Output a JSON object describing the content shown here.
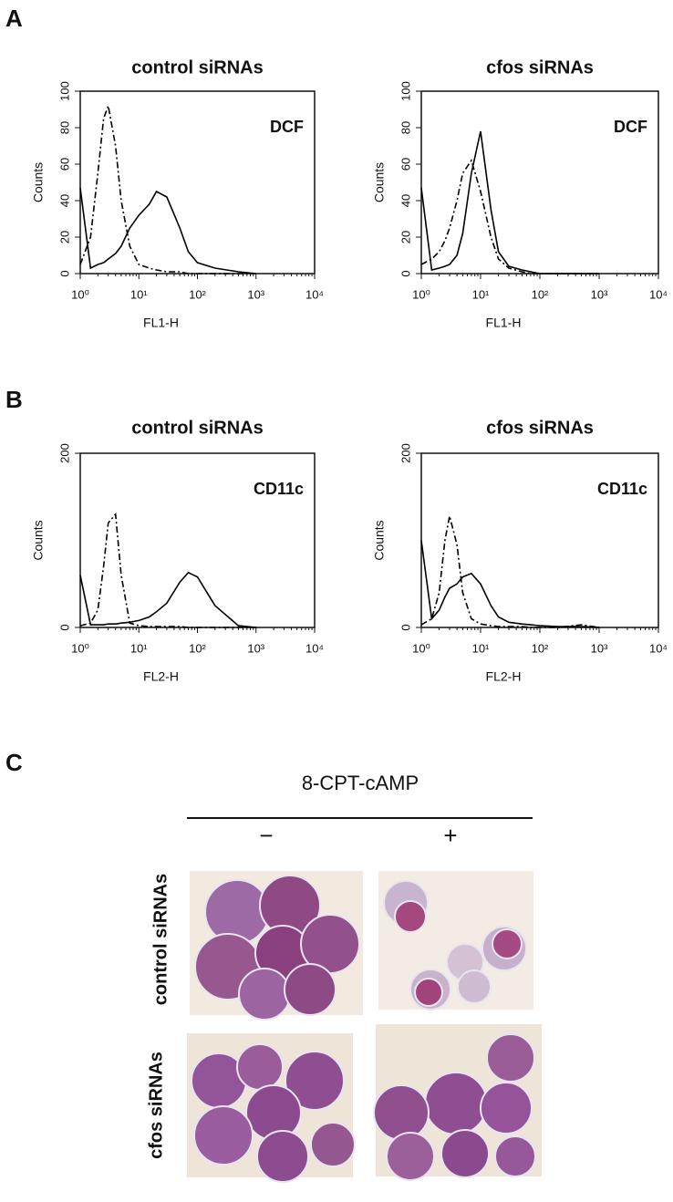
{
  "panel_labels": [
    "A",
    "B",
    "C"
  ],
  "chart_data": [
    {
      "type": "line",
      "title": "control siRNAs",
      "annotation": "DCF",
      "xlabel": "FL1-H",
      "ylabel": "Counts",
      "xscale": "log",
      "xlim": [
        1,
        10000
      ],
      "xticks": [
        {
          "value": 1,
          "label": "10⁰"
        },
        {
          "value": 10,
          "label": "10¹"
        },
        {
          "value": 100,
          "label": "10²"
        },
        {
          "value": 1000,
          "label": "10³"
        },
        {
          "value": 10000,
          "label": "10⁴"
        }
      ],
      "ylim": [
        0,
        100
      ],
      "yticks": [
        0,
        20,
        40,
        60,
        80,
        100
      ],
      "x": [
        1,
        1.5,
        2,
        2.5,
        3,
        4,
        5,
        7,
        10,
        15,
        20,
        30,
        50,
        70,
        100,
        200,
        500,
        1000
      ],
      "series": [
        {
          "color": "#000000",
          "dash": "solid",
          "values": [
            47,
            3,
            5,
            6,
            8,
            11,
            15,
            25,
            32,
            38,
            45,
            42,
            25,
            12,
            6,
            3,
            1,
            0
          ]
        },
        {
          "color": "#000000",
          "dash": "dashdot",
          "values": [
            5,
            20,
            55,
            85,
            92,
            70,
            40,
            15,
            5,
            3,
            2,
            1,
            1,
            0,
            0,
            0,
            0,
            0
          ]
        }
      ]
    },
    {
      "type": "line",
      "title": "cfos siRNAs",
      "annotation": "DCF",
      "xlabel": "FL1-H",
      "ylabel": "Counts",
      "xscale": "log",
      "xlim": [
        1,
        10000
      ],
      "xticks": [
        {
          "value": 1,
          "label": "10⁰"
        },
        {
          "value": 10,
          "label": "10¹"
        },
        {
          "value": 100,
          "label": "10²"
        },
        {
          "value": 1000,
          "label": "10³"
        },
        {
          "value": 10000,
          "label": "10⁴"
        }
      ],
      "ylim": [
        0,
        100
      ],
      "yticks": [
        0,
        20,
        40,
        60,
        80,
        100
      ],
      "x": [
        1,
        1.5,
        2,
        2.5,
        3,
        4,
        5,
        7,
        10,
        15,
        20,
        30,
        50,
        70,
        100,
        200,
        500,
        1000
      ],
      "series": [
        {
          "color": "#000000",
          "dash": "solid",
          "values": [
            47,
            2,
            3,
            4,
            5,
            10,
            22,
            55,
            78,
            35,
            12,
            4,
            2,
            1,
            0,
            0,
            0,
            0
          ]
        },
        {
          "color": "#000000",
          "dash": "dashdot",
          "values": [
            5,
            8,
            12,
            18,
            25,
            40,
            55,
            62,
            45,
            20,
            8,
            3,
            1,
            0,
            0,
            0,
            0,
            0
          ]
        }
      ]
    },
    {
      "type": "line",
      "title": "control siRNAs",
      "annotation": "CD11c",
      "xlabel": "FL2-H",
      "ylabel": "Counts",
      "xscale": "log",
      "xlim": [
        1,
        10000
      ],
      "xticks": [
        {
          "value": 1,
          "label": "10⁰"
        },
        {
          "value": 10,
          "label": "10¹"
        },
        {
          "value": 100,
          "label": "10²"
        },
        {
          "value": 1000,
          "label": "10³"
        },
        {
          "value": 10000,
          "label": "10⁴"
        }
      ],
      "ylim": [
        0,
        200
      ],
      "yticks": [
        0,
        200
      ],
      "x": [
        1,
        1.5,
        2,
        2.5,
        3,
        4,
        5,
        7,
        10,
        15,
        20,
        30,
        50,
        70,
        100,
        200,
        500,
        1000
      ],
      "series": [
        {
          "color": "#000000",
          "dash": "solid",
          "values": [
            60,
            3,
            3,
            3,
            4,
            4,
            5,
            6,
            8,
            12,
            18,
            28,
            52,
            63,
            58,
            25,
            2,
            0
          ]
        },
        {
          "color": "#000000",
          "dash": "dashdot",
          "values": [
            2,
            5,
            20,
            70,
            120,
            130,
            60,
            5,
            2,
            1,
            1,
            1,
            1,
            0,
            0,
            0,
            0,
            0
          ]
        }
      ]
    },
    {
      "type": "line",
      "title": "cfos siRNAs",
      "annotation": "CD11c",
      "xlabel": "FL2-H",
      "ylabel": "Counts",
      "xscale": "log",
      "xlim": [
        1,
        10000
      ],
      "xticks": [
        {
          "value": 1,
          "label": "10⁰"
        },
        {
          "value": 10,
          "label": "10¹"
        },
        {
          "value": 100,
          "label": "10²"
        },
        {
          "value": 1000,
          "label": "10³"
        },
        {
          "value": 10000,
          "label": "10⁴"
        }
      ],
      "ylim": [
        0,
        200
      ],
      "yticks": [
        0,
        200
      ],
      "x": [
        1,
        1.5,
        2,
        2.5,
        3,
        4,
        5,
        7,
        10,
        15,
        20,
        30,
        50,
        70,
        100,
        200,
        500,
        1000
      ],
      "series": [
        {
          "color": "#000000",
          "dash": "solid",
          "values": [
            100,
            10,
            20,
            35,
            45,
            50,
            58,
            62,
            50,
            25,
            12,
            6,
            4,
            3,
            2,
            1,
            1,
            0
          ]
        },
        {
          "color": "#000000",
          "dash": "dashdot",
          "values": [
            3,
            10,
            40,
            100,
            128,
            95,
            40,
            10,
            4,
            2,
            1,
            1,
            1,
            0,
            0,
            0,
            3,
            0
          ]
        }
      ]
    }
  ],
  "panel_c": {
    "treatment": "8-CPT-cAMP",
    "columns": [
      "−",
      "+"
    ],
    "rows": [
      "control siRNAs",
      "cfos siRNAs"
    ]
  }
}
